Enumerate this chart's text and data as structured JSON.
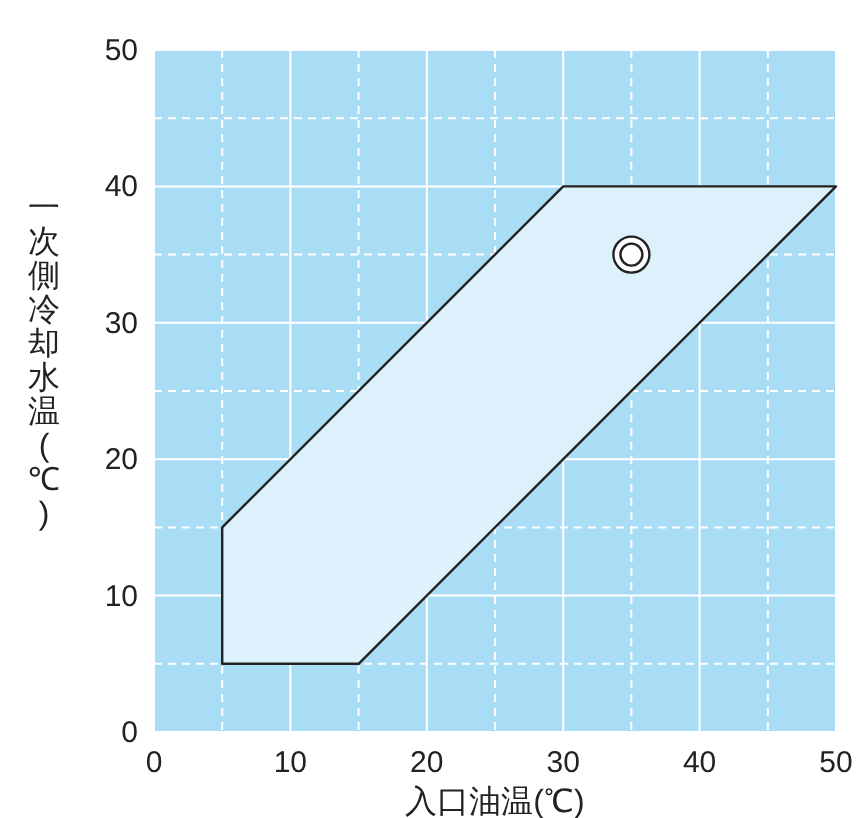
{
  "chart_data": {
    "type": "area",
    "xlabel": "入口油温(℃)",
    "ylabel": "一次側冷却水温(℃)",
    "xlim": [
      0,
      50
    ],
    "ylim": [
      0,
      50
    ],
    "xticks": [
      0,
      {
        "value": 5,
        "label": null
      },
      10,
      {
        "value": 15,
        "label": null
      },
      20,
      {
        "value": 25,
        "label": null
      },
      30,
      {
        "value": 35,
        "label": null
      },
      40,
      {
        "value": 45,
        "label": null
      },
      50
    ],
    "yticks": [
      0,
      {
        "value": 5,
        "label": null
      },
      10,
      {
        "value": 15,
        "label": null
      },
      20,
      {
        "value": 25,
        "label": null
      },
      30,
      {
        "value": 35,
        "label": null
      },
      40,
      {
        "value": 45,
        "label": null
      },
      50
    ],
    "grid": true,
    "series": [
      {
        "color": "#dcf1fb",
        "x": [
          5,
          15,
          50,
          30,
          5,
          5
        ],
        "values": [
          5,
          5,
          40,
          40,
          15,
          5
        ]
      },
      {
        "type": "scatter",
        "color": "#ffffff",
        "marker": "circle",
        "x": [
          35
        ],
        "values": [
          35
        ]
      }
    ]
  }
}
